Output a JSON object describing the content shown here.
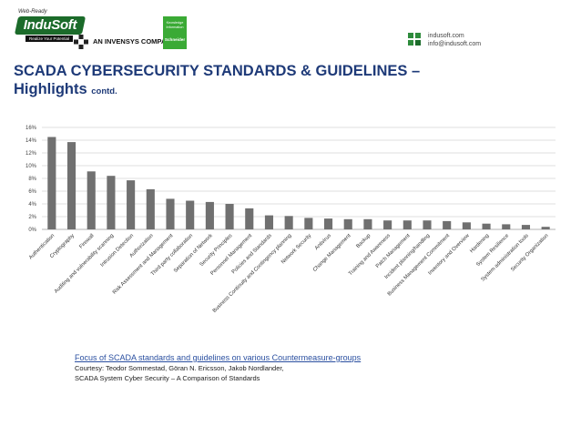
{
  "header": {
    "logo_tagline": "Web-Ready",
    "logo_brand": "InduSoft",
    "logo_subtitle": "Realize Your Potential",
    "company_text": "AN INVENSYS COMPANY.",
    "schneider_tagline": "Knowledge Information",
    "schneider_name": "Schneider",
    "contact_website": "indusoft.com",
    "contact_email": "info@indusoft.com"
  },
  "slide": {
    "title_line1": "SCADA CYBERSECURITY STANDARDS & GUIDELINES –",
    "title_line2": "Highlights",
    "title_suffix": "contd."
  },
  "chart_data": {
    "type": "bar",
    "title": "",
    "xlabel": "",
    "ylabel": "",
    "ylim": [
      0,
      16
    ],
    "y_ticks": [
      "0%",
      "2%",
      "4%",
      "6%",
      "8%",
      "10%",
      "12%",
      "14%",
      "16%"
    ],
    "grid": true,
    "bar_color": "#707070",
    "categories": [
      "Authentication",
      "Cryptography",
      "Firewall",
      "Auditing and vulnerability scanning",
      "Intrusion Detection",
      "Authorization",
      "Risk Assessment and Management",
      "Third party collaboration",
      "Separation of Network",
      "Security Principles",
      "Personnel Management",
      "Policies and Standards",
      "Business Continuity and Contingency planning",
      "Network Security",
      "Antivirus",
      "Change Management",
      "Backup",
      "Training and Awareness",
      "Patch Management",
      "Incident planning/handling",
      "Business Management Commitment",
      "Inventory and Overview",
      "Hardening",
      "System Resilience",
      "System administration tools",
      "Security Organization"
    ],
    "values": [
      14.5,
      13.7,
      9.1,
      8.4,
      7.7,
      6.3,
      4.8,
      4.5,
      4.3,
      4.0,
      3.3,
      2.2,
      2.1,
      1.8,
      1.7,
      1.6,
      1.6,
      1.4,
      1.4,
      1.4,
      1.3,
      1.1,
      0.9,
      0.8,
      0.7,
      0.4
    ]
  },
  "caption": {
    "link_text": "Focus of SCADA standards and guidelines on various Countermeasure-groups",
    "courtesy_line": "Courtesy: Teodor Sommestad, Göran N. Ericsson, Jakob Nordlander,",
    "source_line": "SCADA System Cyber Security – A Comparison of Standards"
  }
}
